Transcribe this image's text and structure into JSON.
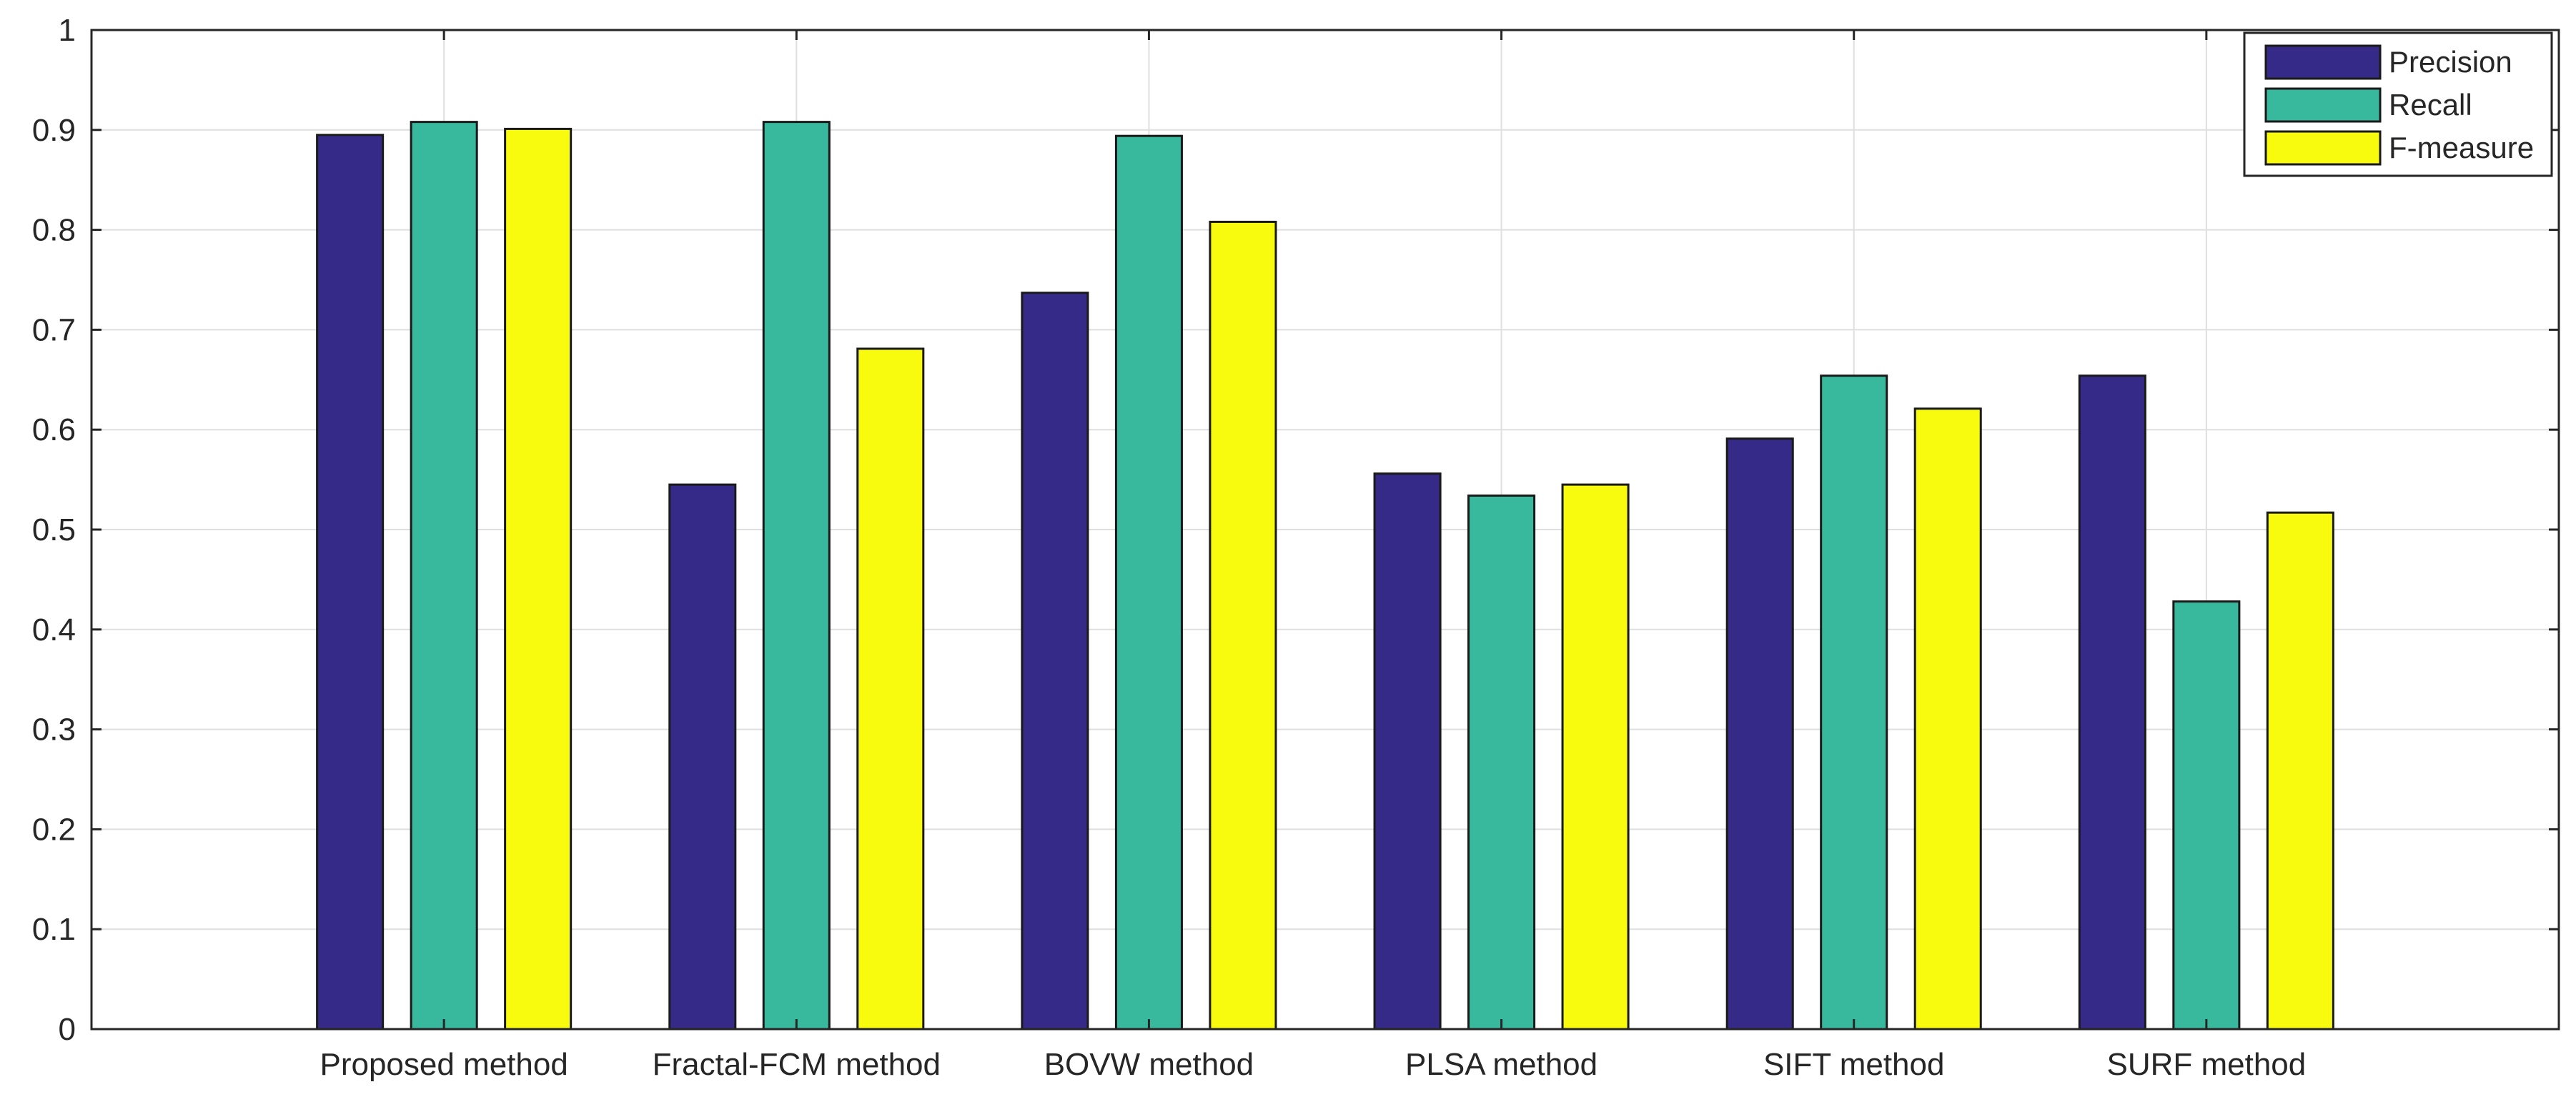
{
  "chart_data": {
    "type": "bar",
    "categories": [
      "Proposed method",
      "Fractal-FCM method",
      "BOVW method",
      "PLSA method",
      "SIFT method",
      "SURF method"
    ],
    "series": [
      {
        "name": "Precision",
        "values": [
          0.895,
          0.545,
          0.737,
          0.556,
          0.591,
          0.654
        ]
      },
      {
        "name": "Recall",
        "values": [
          0.908,
          0.908,
          0.894,
          0.534,
          0.654,
          0.428
        ]
      },
      {
        "name": "F-measure",
        "values": [
          0.901,
          0.681,
          0.808,
          0.545,
          0.621,
          0.517
        ]
      }
    ],
    "title": "",
    "xlabel": "",
    "ylabel": "",
    "ylim": [
      0,
      1
    ],
    "yticks": [
      "0",
      "0.1",
      "0.2",
      "0.3",
      "0.4",
      "0.5",
      "0.6",
      "0.7",
      "0.8",
      "0.9",
      "1"
    ],
    "grid": true,
    "legend_position": "top-right",
    "colors": {
      "Precision": "#352a87",
      "Recall": "#38b99e",
      "F-measure": "#f9fb0e"
    }
  }
}
